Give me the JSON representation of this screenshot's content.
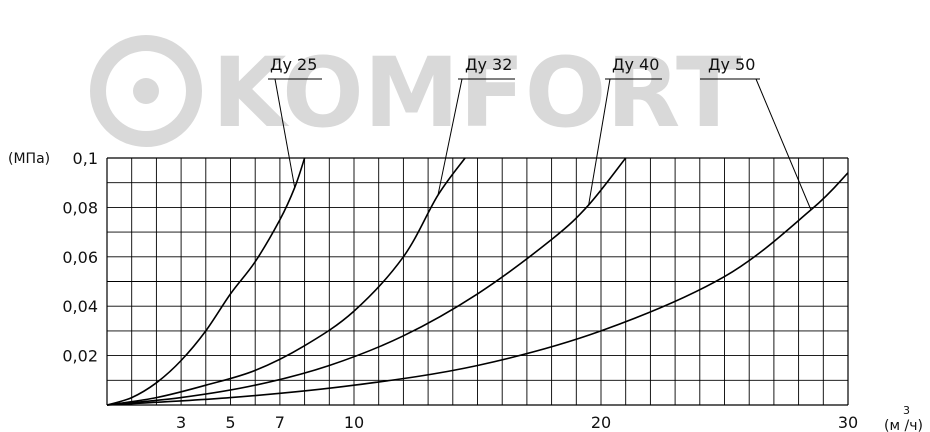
{
  "watermark": {
    "text": "KOMFORT"
  },
  "chart_data": {
    "type": "line",
    "title": "",
    "xlabel": "",
    "ylabel": "",
    "y_unit_label": "(МПа)",
    "x_unit_label": "(м³/ч)",
    "x_unit_main": "(м /ч)",
    "x_unit_sup": "3",
    "xlim": [
      0,
      30
    ],
    "ylim": [
      0,
      0.1
    ],
    "x_ticks": [
      {
        "value": 3,
        "label": "3"
      },
      {
        "value": 5,
        "label": "5"
      },
      {
        "value": 7,
        "label": "7"
      },
      {
        "value": 10,
        "label": "10"
      },
      {
        "value": 20,
        "label": "20"
      },
      {
        "value": 30,
        "label": "30"
      }
    ],
    "y_ticks": [
      {
        "value": 0.02,
        "label": "0,02"
      },
      {
        "value": 0.04,
        "label": "0,04"
      },
      {
        "value": 0.06,
        "label": "0,06"
      },
      {
        "value": 0.08,
        "label": "0,08"
      },
      {
        "value": 0.1,
        "label": "0,1"
      }
    ],
    "grid": true,
    "series": [
      {
        "name": "Ду 25",
        "x": [
          0,
          1,
          2,
          3,
          4,
          5,
          6,
          7,
          7.6,
          8.0
        ],
        "y": [
          0,
          0.003,
          0.009,
          0.018,
          0.03,
          0.045,
          0.058,
          0.075,
          0.088,
          0.1
        ]
      },
      {
        "name": "Ду 32",
        "x": [
          0,
          2,
          4,
          6,
          8,
          10,
          12,
          13.4,
          14.5
        ],
        "y": [
          0,
          0.003,
          0.008,
          0.014,
          0.024,
          0.038,
          0.06,
          0.085,
          0.1
        ]
      },
      {
        "name": "Ду 40",
        "x": [
          0,
          3,
          6,
          9,
          12,
          15,
          18,
          19.5,
          21
        ],
        "y": [
          0,
          0.003,
          0.008,
          0.016,
          0.028,
          0.045,
          0.067,
          0.081,
          0.1
        ]
      },
      {
        "name": "Ду 50",
        "x": [
          0,
          5,
          10,
          15,
          20,
          25,
          28.5,
          30
        ],
        "y": [
          0,
          0.003,
          0.008,
          0.016,
          0.03,
          0.052,
          0.079,
          0.094
        ]
      }
    ]
  }
}
